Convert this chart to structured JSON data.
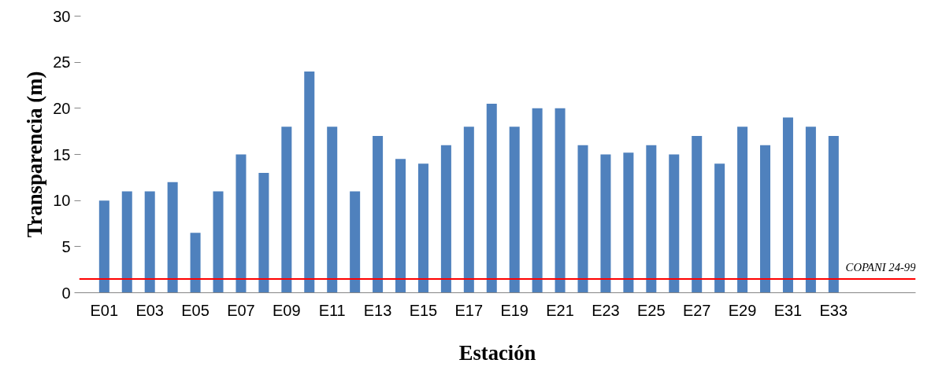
{
  "chart_data": {
    "type": "bar",
    "xlabel": "Estación",
    "ylabel": "Transparencia (m)",
    "categories": [
      "E01",
      null,
      "E03",
      null,
      "E05",
      null,
      "E07",
      null,
      "E09",
      null,
      "E11",
      null,
      "E13",
      null,
      "E15",
      null,
      "E17",
      null,
      "E19",
      null,
      "E21",
      null,
      "E23",
      null,
      "E25",
      null,
      "E27",
      null,
      "E29",
      null,
      "E31",
      null,
      "E33"
    ],
    "values": [
      10,
      11,
      11,
      12,
      6.5,
      11,
      15,
      13,
      18,
      24,
      18,
      11,
      17,
      14.5,
      14,
      16,
      18,
      20.5,
      18,
      20,
      20,
      16,
      15,
      15.2,
      16,
      15,
      17,
      14,
      18,
      16,
      19,
      18,
      17
    ],
    "color": "#4f81bd",
    "ylim": [
      0,
      30
    ],
    "yticks": [
      0,
      5,
      10,
      15,
      20,
      25,
      30
    ],
    "grid": false,
    "ref_lines": [
      {
        "axis": "y",
        "value": 1.5,
        "label": "COPANI 24-99",
        "color": "#ff0000"
      }
    ]
  }
}
